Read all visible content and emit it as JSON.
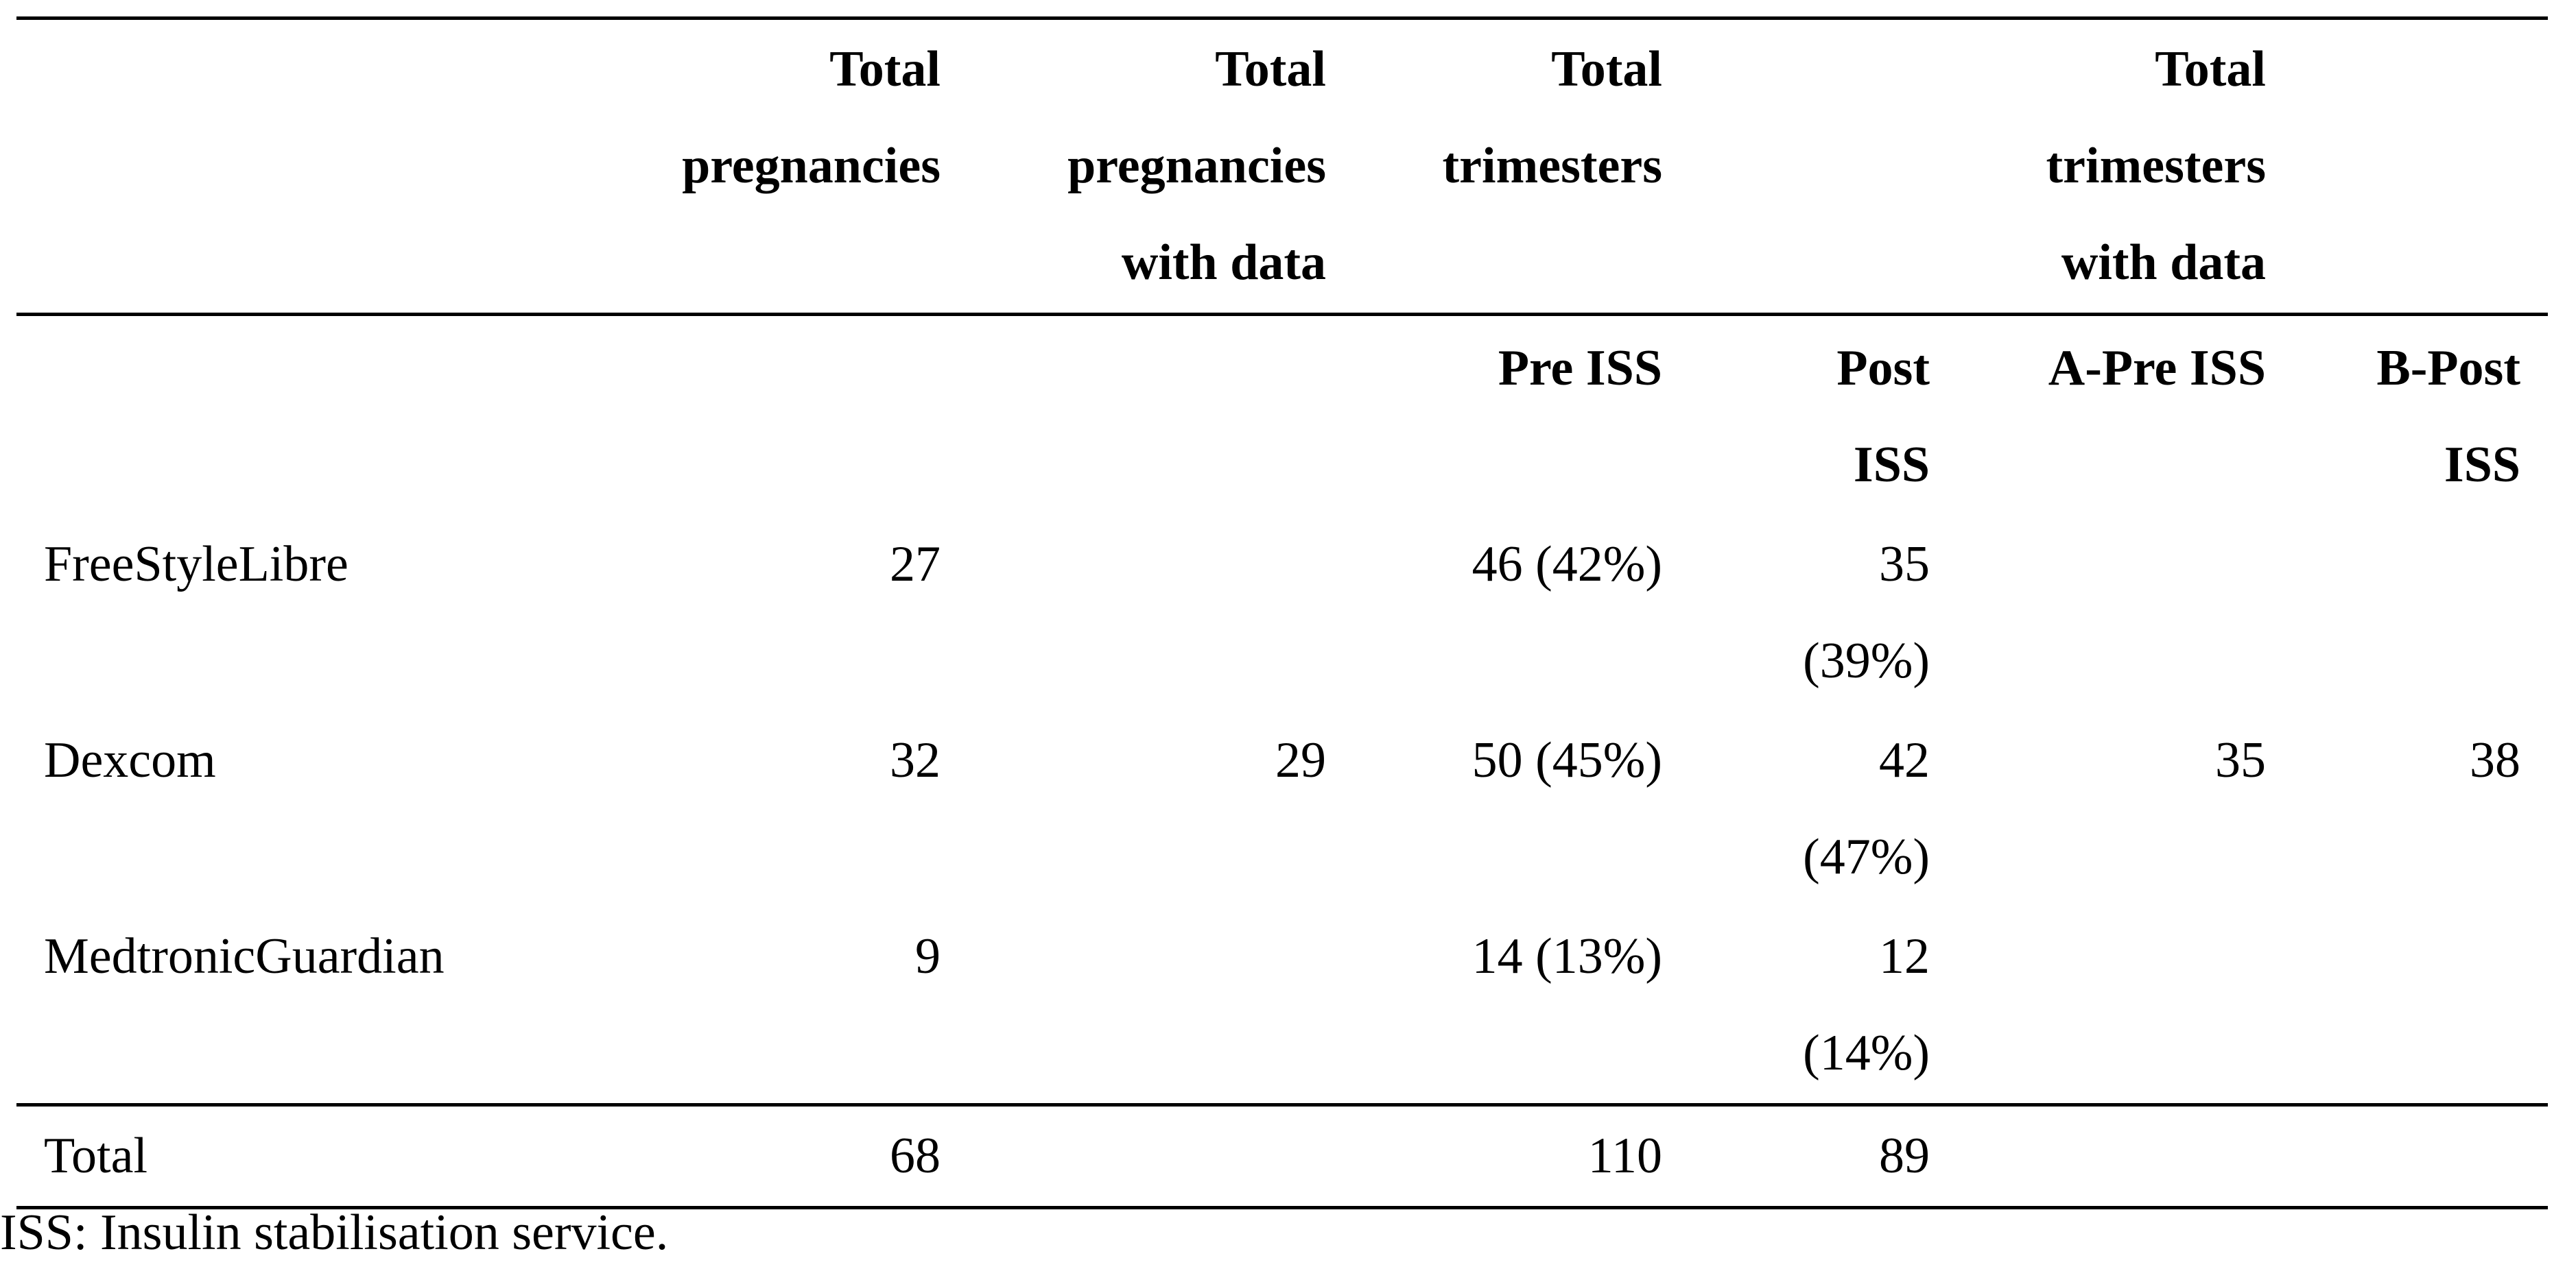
{
  "table": {
    "header": [
      null,
      "Total pregnancies",
      "Total pregnancies with data",
      "Total trimesters",
      null,
      "Total trimesters with data",
      null
    ],
    "subheader": [
      null,
      null,
      null,
      "Pre ISS",
      "Post ISS",
      "A-Pre ISS",
      "B-Post ISS"
    ],
    "rows": [
      [
        "FreeStyleLibre",
        "27",
        null,
        "46 (42%)",
        "35 (39%)",
        null,
        null
      ],
      [
        "Dexcom",
        "32",
        "29",
        "50 (45%)",
        "42 (47%)",
        "35",
        "38"
      ],
      [
        "MedtronicGuardian",
        "9",
        null,
        "14 (13%)",
        "12 (14%)",
        null,
        null
      ]
    ],
    "total": [
      "Total",
      "68",
      null,
      "110",
      "89",
      null,
      null
    ]
  },
  "footnote": "ISS: Insulin stabilisation service."
}
